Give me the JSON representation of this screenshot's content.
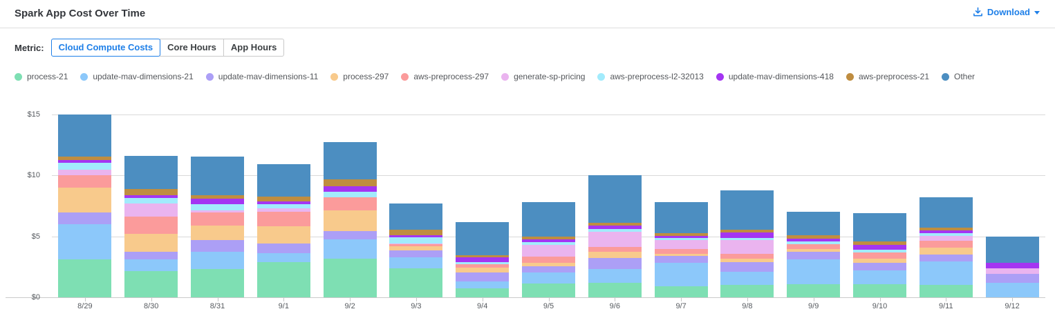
{
  "header": {
    "title": "Spark App Cost Over Time",
    "download_label": "Download"
  },
  "metric": {
    "label": "Metric:",
    "options": [
      {
        "label": "Cloud Compute Costs",
        "selected": true
      },
      {
        "label": "Core Hours",
        "selected": false
      },
      {
        "label": "App Hours",
        "selected": false
      }
    ]
  },
  "colors": {
    "accent": "#1e7fe8",
    "gridline": "#d9d9d9"
  },
  "chart_data": {
    "type": "bar",
    "stacked": true,
    "title": "Spark App Cost Over Time",
    "xlabel": "",
    "ylabel": "",
    "ylim": [
      0,
      15.5
    ],
    "yticks": [
      0,
      5,
      10,
      15
    ],
    "ytick_labels": [
      "$0",
      "$5",
      "$10",
      "$15"
    ],
    "grid": "horizontal",
    "legend_position": "top",
    "categories": [
      "8/29",
      "8/30",
      "8/31",
      "9/1",
      "9/2",
      "9/3",
      "9/4",
      "9/5",
      "9/6",
      "9/7",
      "9/8",
      "9/9",
      "9/10",
      "9/11",
      "9/12"
    ],
    "series": [
      {
        "name": "process-21",
        "color": "#7edfb3",
        "values": [
          3.11,
          2.15,
          2.32,
          2.89,
          3.17,
          2.38,
          0.74,
          1.13,
          1.19,
          0.91,
          1.02,
          1.08,
          1.08,
          1.02,
          0
        ]
      },
      {
        "name": "update-mav-dimensions-21",
        "color": "#8cc8fa",
        "values": [
          2.89,
          0.96,
          1.41,
          0.74,
          1.58,
          0.91,
          0.57,
          0.91,
          1.13,
          1.92,
          1.08,
          2.04,
          1.13,
          1.92,
          1.19
        ]
      },
      {
        "name": "update-mav-dimensions-11",
        "color": "#ac9ff6",
        "values": [
          0.96,
          0.62,
          0.96,
          0.79,
          0.68,
          0.57,
          0.74,
          0.51,
          0.91,
          0.57,
          0.79,
          0.62,
          0.62,
          0.57,
          0.74
        ]
      },
      {
        "name": "process-297",
        "color": "#f8ca8c",
        "values": [
          2.04,
          1.47,
          1.19,
          1.41,
          1.7,
          0.34,
          0.4,
          0.28,
          0.51,
          0.17,
          0.28,
          0.23,
          0.34,
          0.57,
          0
        ]
      },
      {
        "name": "aws-preprocess-297",
        "color": "#fb9b9b",
        "values": [
          1.02,
          1.41,
          1.08,
          1.19,
          1.08,
          0.15,
          0.28,
          0.51,
          0.4,
          0.4,
          0.4,
          0.4,
          0.51,
          0.57,
          0
        ]
      },
      {
        "name": "generate-sp-pricing",
        "color": "#eab4ef",
        "values": [
          0.45,
          1.08,
          0.17,
          0.28,
          0,
          0.06,
          0,
          0.96,
          1.25,
          0.74,
          1.13,
          0,
          0,
          0.4,
          0.45
        ]
      },
      {
        "name": "aws-preprocess-l2-32013",
        "color": "#a2ebfc",
        "values": [
          0.56,
          0.45,
          0.51,
          0.34,
          0.45,
          0.51,
          0.17,
          0.23,
          0.23,
          0.17,
          0.17,
          0.23,
          0.23,
          0.23,
          0
        ]
      },
      {
        "name": "update-mav-dimensions-418",
        "color": "#a435f2",
        "values": [
          0.23,
          0.23,
          0.45,
          0.23,
          0.45,
          0.17,
          0.4,
          0.23,
          0.28,
          0.17,
          0.45,
          0.23,
          0.4,
          0.23,
          0.45
        ]
      },
      {
        "name": "aws-preprocess-21",
        "color": "#bf8d40",
        "values": [
          0.28,
          0.51,
          0.28,
          0.4,
          0.57,
          0.45,
          0.17,
          0.23,
          0.23,
          0.23,
          0.23,
          0.28,
          0.28,
          0.23,
          0
        ]
      },
      {
        "name": "Other",
        "color": "#4c8ec1",
        "values": [
          3.45,
          2.72,
          3.17,
          2.66,
          3.06,
          2.15,
          2.72,
          2.83,
          3.91,
          2.55,
          3.23,
          1.92,
          2.32,
          2.49,
          2.15
        ]
      }
    ]
  }
}
